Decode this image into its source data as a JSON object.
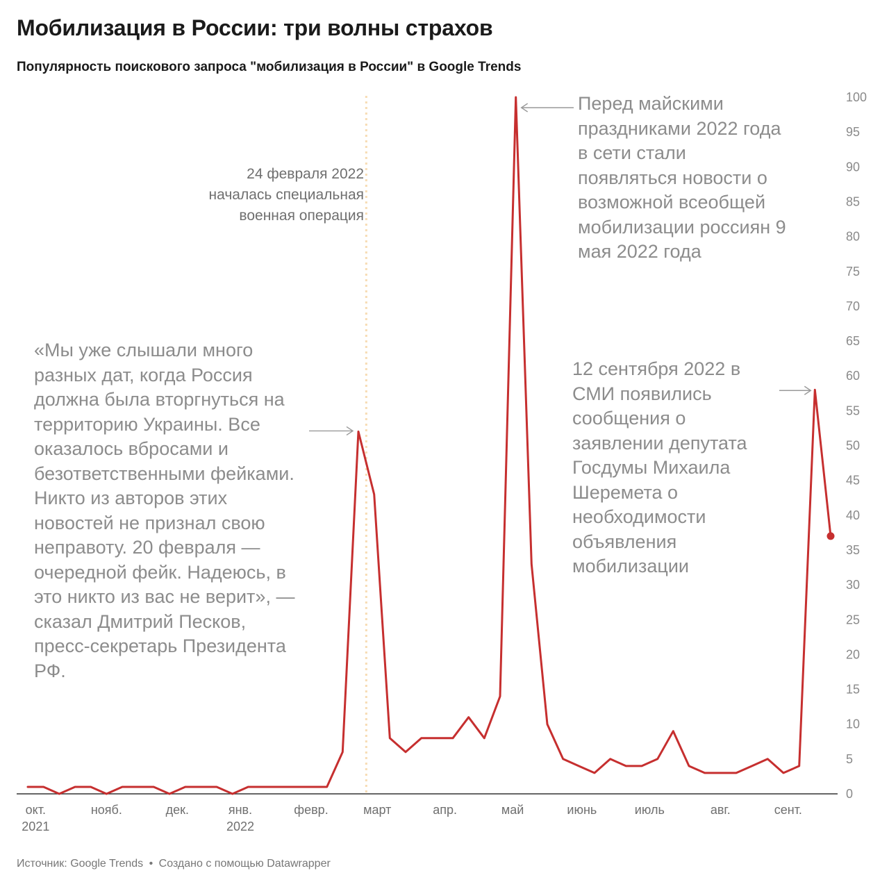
{
  "header": {
    "title": "Мобилизация в России: три волны страхов",
    "subtitle": "Популярность поискового запроса \"мобилизация в России\" в Google Trends"
  },
  "footer": {
    "source": "Источник: Google Trends",
    "separator": "•",
    "credit": "Создано с помощью Datawrapper"
  },
  "annotations": {
    "feb24_line1": "24 февраля 2022",
    "feb24_line2": "началась специальная",
    "feb24_line3": "военная операция",
    "pre_war_quote": "«Мы уже слышали много разных дат, когда Россия должна была вторгнуться на территорию Украины. Все оказалось вбросами и безответственными фейками. Никто из авторов этих новостей не признал свою неправоту. 20 февраля — очередной фейк. Надеюсь, в это никто из вас не верит», — сказал Дмитрий Песков, пресс-секретарь Президента РФ.",
    "may_note": "Перед майскими праздниками 2022 года в сети стали появляться новости о возможной всеобщей мобилизации россиян 9 мая 2022 года",
    "sept_note": "12 сентября 2022 в СМИ появились сообщения о заявлении депутата Госдумы Михаила Шеремета о необходимости объявления мобилизации"
  },
  "colors": {
    "line": "#c62f2f",
    "reference_line": "#f7dcb4",
    "axis": "#333333",
    "annotation_text": "#8c8c8c",
    "arrow": "#999999"
  },
  "chart_data": {
    "type": "line",
    "title": "Мобилизация в России: три волны страхов",
    "subtitle": "Популярность поискового запроса \"мобилизация в России\" в Google Trends",
    "xlabel": "",
    "ylabel": "",
    "x_unit": "week",
    "ylim": [
      0,
      100
    ],
    "y_ticks": [
      0,
      5,
      10,
      15,
      20,
      25,
      30,
      35,
      40,
      45,
      50,
      55,
      60,
      65,
      70,
      75,
      80,
      85,
      90,
      95,
      100
    ],
    "y_axis_side": "right",
    "grid": false,
    "x_tick_labels": [
      {
        "label": "окт.",
        "year": "2021",
        "week": 0.5
      },
      {
        "label": "нояб.",
        "year": "",
        "week": 5
      },
      {
        "label": "дек.",
        "year": "",
        "week": 9.5
      },
      {
        "label": "янв.",
        "year": "2022",
        "week": 13.5
      },
      {
        "label": "февр.",
        "year": "",
        "week": 18
      },
      {
        "label": "март",
        "year": "",
        "week": 22.2
      },
      {
        "label": "апр.",
        "year": "",
        "week": 26.5
      },
      {
        "label": "май",
        "year": "",
        "week": 30.8
      },
      {
        "label": "июнь",
        "year": "",
        "week": 35.2
      },
      {
        "label": "июль",
        "year": "",
        "week": 39.5
      },
      {
        "label": "авг.",
        "year": "",
        "week": 44
      },
      {
        "label": "сент.",
        "year": "",
        "week": 48.3
      }
    ],
    "reference_line": {
      "week": 21.5,
      "label": "24 февраля 2022"
    },
    "series": [
      {
        "values": [
          1,
          1,
          0,
          1,
          1,
          0,
          1,
          1,
          1,
          0,
          1,
          1,
          1,
          0,
          1,
          1,
          1,
          1,
          1,
          1,
          6,
          52,
          43,
          8,
          6,
          8,
          8,
          8,
          11,
          8,
          14,
          100,
          33,
          10,
          5,
          4,
          3,
          5,
          4,
          4,
          5,
          9,
          4,
          3,
          3,
          3,
          4,
          5,
          3,
          4,
          58,
          37
        ]
      }
    ]
  }
}
